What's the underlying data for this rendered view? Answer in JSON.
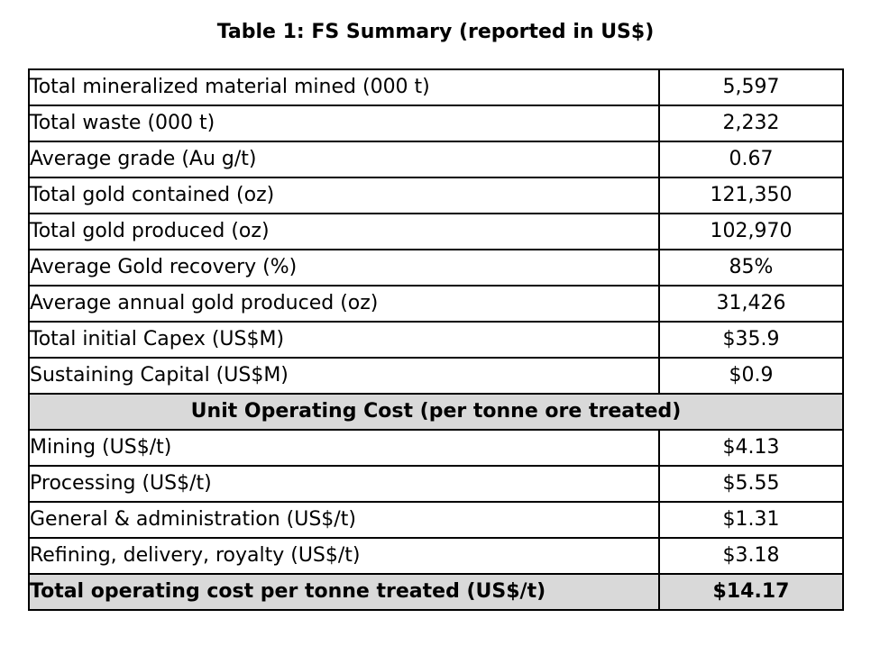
{
  "title": "Table 1: FS Summary (reported in US$)",
  "summary_rows": [
    {
      "label": "Total mineralized material mined (000 t)",
      "value": "5,597"
    },
    {
      "label": "Total waste (000 t)",
      "value": "2,232"
    },
    {
      "label": "Average grade (Au g/t)",
      "value": "0.67"
    },
    {
      "label": "Total gold contained (oz)",
      "value": "121,350"
    },
    {
      "label": "Total gold produced (oz)",
      "value": "102,970"
    },
    {
      "label": "Average Gold recovery (%)",
      "value": "85%"
    },
    {
      "label": "Average annual gold produced (oz)",
      "value": "31,426"
    },
    {
      "label": "Total initial Capex (US$M)",
      "value": "$35.9"
    },
    {
      "label": "Sustaining Capital (US$M)",
      "value": "$0.9"
    }
  ],
  "section_header": "Unit Operating Cost (per tonne ore treated)",
  "cost_rows": [
    {
      "label": "Mining (US$/t)",
      "value": "$4.13"
    },
    {
      "label": "Processing (US$/t)",
      "value": "$5.55"
    },
    {
      "label": "General & administration (US$/t)",
      "value": "$1.31"
    },
    {
      "label": "Refining, delivery, royalty (US$/t)",
      "value": "$3.18"
    }
  ],
  "total_row": {
    "label": "Total operating cost per tonne treated (US$/t)",
    "value": "$14.17"
  }
}
